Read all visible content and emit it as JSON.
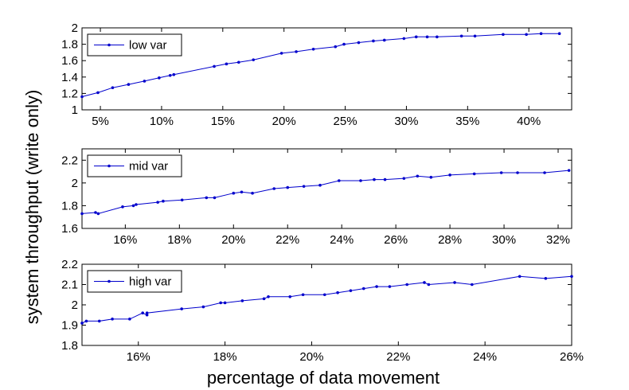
{
  "figure": {
    "ylabel": "system throughput (write only)",
    "xlabel": "percentage of data movement",
    "line_color": "#0000cc"
  },
  "chart_data": [
    {
      "type": "line",
      "series": [
        {
          "name": "low var",
          "x": [
            3.5,
            4.8,
            6.0,
            7.3,
            8.6,
            9.8,
            10.7,
            11.0,
            14.3,
            15.3,
            16.3,
            17.5,
            19.8,
            21.0,
            22.4,
            24.2,
            24.9,
            26.1,
            27.3,
            28.2,
            29.8,
            30.8,
            31.7,
            32.5,
            34.5,
            35.6,
            37.9,
            39.8,
            41.0,
            42.5
          ],
          "y": [
            1.16,
            1.21,
            1.27,
            1.31,
            1.35,
            1.39,
            1.42,
            1.43,
            1.53,
            1.56,
            1.58,
            1.61,
            1.69,
            1.71,
            1.74,
            1.77,
            1.8,
            1.82,
            1.84,
            1.85,
            1.87,
            1.89,
            1.89,
            1.89,
            1.9,
            1.9,
            1.92,
            1.92,
            1.93,
            1.93
          ]
        }
      ],
      "xlim": [
        3.5,
        43.5
      ],
      "ylim": [
        1,
        2
      ],
      "xticks": [
        5,
        10,
        15,
        20,
        25,
        30,
        35,
        40
      ],
      "xtick_labels": [
        "5%",
        "10%",
        "15%",
        "20%",
        "25%",
        "30%",
        "35%",
        "40%"
      ],
      "yticks": [
        1,
        1.2,
        1.4,
        1.6,
        1.8,
        2
      ],
      "ytick_labels": [
        "1",
        "1.2",
        "1.4",
        "1.6",
        "1.8",
        "2"
      ],
      "legend": "top-left"
    },
    {
      "type": "line",
      "series": [
        {
          "name": "mid var",
          "x": [
            14.4,
            14.9,
            15.0,
            15.9,
            16.3,
            16.4,
            17.2,
            17.4,
            18.1,
            19.0,
            19.3,
            20.0,
            20.3,
            20.7,
            21.5,
            22.0,
            22.6,
            23.2,
            23.9,
            24.7,
            25.2,
            25.6,
            26.3,
            26.8,
            27.3,
            28.0,
            28.9,
            29.9,
            30.5,
            31.5,
            32.4
          ],
          "y": [
            1.73,
            1.74,
            1.73,
            1.79,
            1.8,
            1.81,
            1.83,
            1.84,
            1.85,
            1.87,
            1.87,
            1.91,
            1.92,
            1.91,
            1.95,
            1.96,
            1.97,
            1.98,
            2.02,
            2.02,
            2.03,
            2.03,
            2.04,
            2.06,
            2.05,
            2.07,
            2.08,
            2.09,
            2.09,
            2.09,
            2.11
          ]
        }
      ],
      "xlim": [
        14.4,
        32.5
      ],
      "ylim": [
        1.6,
        2.3
      ],
      "xticks": [
        16,
        18,
        20,
        22,
        24,
        26,
        28,
        30,
        32
      ],
      "xtick_labels": [
        "16%",
        "18%",
        "20%",
        "22%",
        "24%",
        "26%",
        "28%",
        "30%",
        "32%"
      ],
      "yticks": [
        1.6,
        1.8,
        2,
        2.2
      ],
      "ytick_labels": [
        "1.6",
        "1.8",
        "2",
        "2.2"
      ],
      "legend": "top-left"
    },
    {
      "type": "line",
      "series": [
        {
          "name": "high var",
          "x": [
            14.7,
            14.8,
            15.1,
            15.4,
            15.8,
            16.1,
            16.2,
            16.2,
            17.0,
            17.5,
            17.9,
            18.0,
            18.4,
            18.9,
            19.0,
            19.5,
            19.8,
            20.3,
            20.6,
            20.9,
            21.2,
            21.5,
            21.8,
            22.2,
            22.6,
            22.7,
            23.3,
            23.7,
            24.8,
            25.4,
            26.0
          ],
          "y": [
            1.91,
            1.92,
            1.92,
            1.93,
            1.93,
            1.96,
            1.95,
            1.96,
            1.98,
            1.99,
            2.01,
            2.01,
            2.02,
            2.03,
            2.04,
            2.04,
            2.05,
            2.05,
            2.06,
            2.07,
            2.08,
            2.09,
            2.09,
            2.1,
            2.11,
            2.1,
            2.11,
            2.1,
            2.14,
            2.13,
            2.14
          ]
        }
      ],
      "xlim": [
        14.7,
        26.0
      ],
      "ylim": [
        1.8,
        2.2
      ],
      "xticks": [
        16,
        18,
        20,
        22,
        24,
        26
      ],
      "xtick_labels": [
        "16%",
        "18%",
        "20%",
        "22%",
        "24%",
        "26%"
      ],
      "yticks": [
        1.8,
        1.9,
        2,
        2.1,
        2.2
      ],
      "ytick_labels": [
        "1.8",
        "1.9",
        "2",
        "2.1",
        "2.2"
      ],
      "legend": "top-left"
    }
  ]
}
